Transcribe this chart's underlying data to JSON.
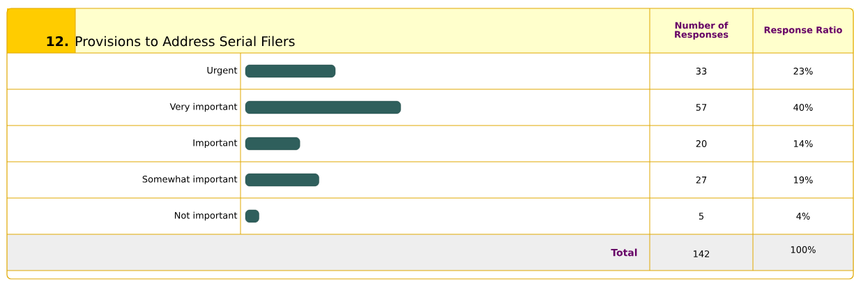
{
  "chart_data": {
    "type": "bar",
    "orientation": "horizontal",
    "title": "**12.** Provisions to Address Serial Filers",
    "categories": [
      "Urgent",
      "Very important",
      "Important",
      "Somewhat important",
      "Not important"
    ],
    "values": [
      33,
      57,
      20,
      27,
      5
    ],
    "color": "#2f5f5c",
    "data_labels": true,
    "annotations": [
      "Number of Responses",
      "Response Ratio",
      "23%",
      "40%",
      "14%",
      "19%",
      "4%",
      "Total",
      "142",
      "100%"
    ]
  }
}
